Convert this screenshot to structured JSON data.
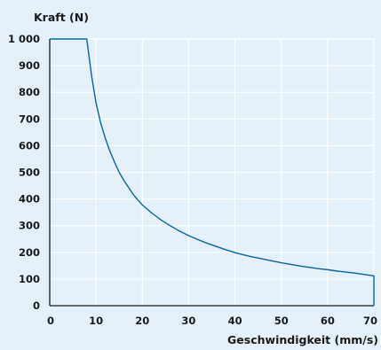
{
  "chart_data": {
    "type": "line",
    "ylabel": "Kraft (N)",
    "xlabel": "Geschwindigkeit (mm/s)",
    "xlim": [
      0,
      70
    ],
    "ylim": [
      0,
      1000
    ],
    "x_ticks": [
      0,
      10,
      20,
      30,
      40,
      50,
      60,
      70
    ],
    "x_tick_labels": [
      "0",
      "10",
      "20",
      "30",
      "40",
      "50",
      "60",
      "70"
    ],
    "y_ticks": [
      0,
      100,
      200,
      300,
      400,
      500,
      600,
      700,
      800,
      900,
      1000
    ],
    "y_tick_labels": [
      "0",
      "100",
      "200",
      "300",
      "400",
      "500",
      "600",
      "700",
      "800",
      "900",
      "1 000"
    ],
    "grid": true,
    "series": [
      {
        "color": "#0a64a5",
        "x": [
          0,
          8,
          9,
          10,
          11,
          12,
          13,
          14,
          15,
          16,
          17,
          18,
          19,
          20,
          22,
          24,
          26,
          28,
          30,
          32,
          34,
          36,
          38,
          40,
          42,
          44,
          46,
          48,
          50,
          52,
          54,
          56,
          58,
          60,
          62,
          64,
          66,
          68,
          70,
          70
        ],
        "y": [
          1000,
          1000,
          866,
          760,
          685,
          628,
          579,
          538,
          500,
          470,
          444,
          418,
          397,
          378,
          348,
          322,
          300,
          280,
          263,
          248,
          234,
          222,
          210,
          199,
          190,
          182,
          175,
          168,
          161,
          155,
          149,
          144,
          139,
          135,
          130,
          126,
          122,
          117,
          112,
          0
        ]
      }
    ]
  },
  "colors": {
    "background": "#e5f1fa",
    "grid": "#ffffff",
    "axis": "#1a1a1a",
    "text": "#1a1a1a",
    "series": "#0a64a5"
  }
}
